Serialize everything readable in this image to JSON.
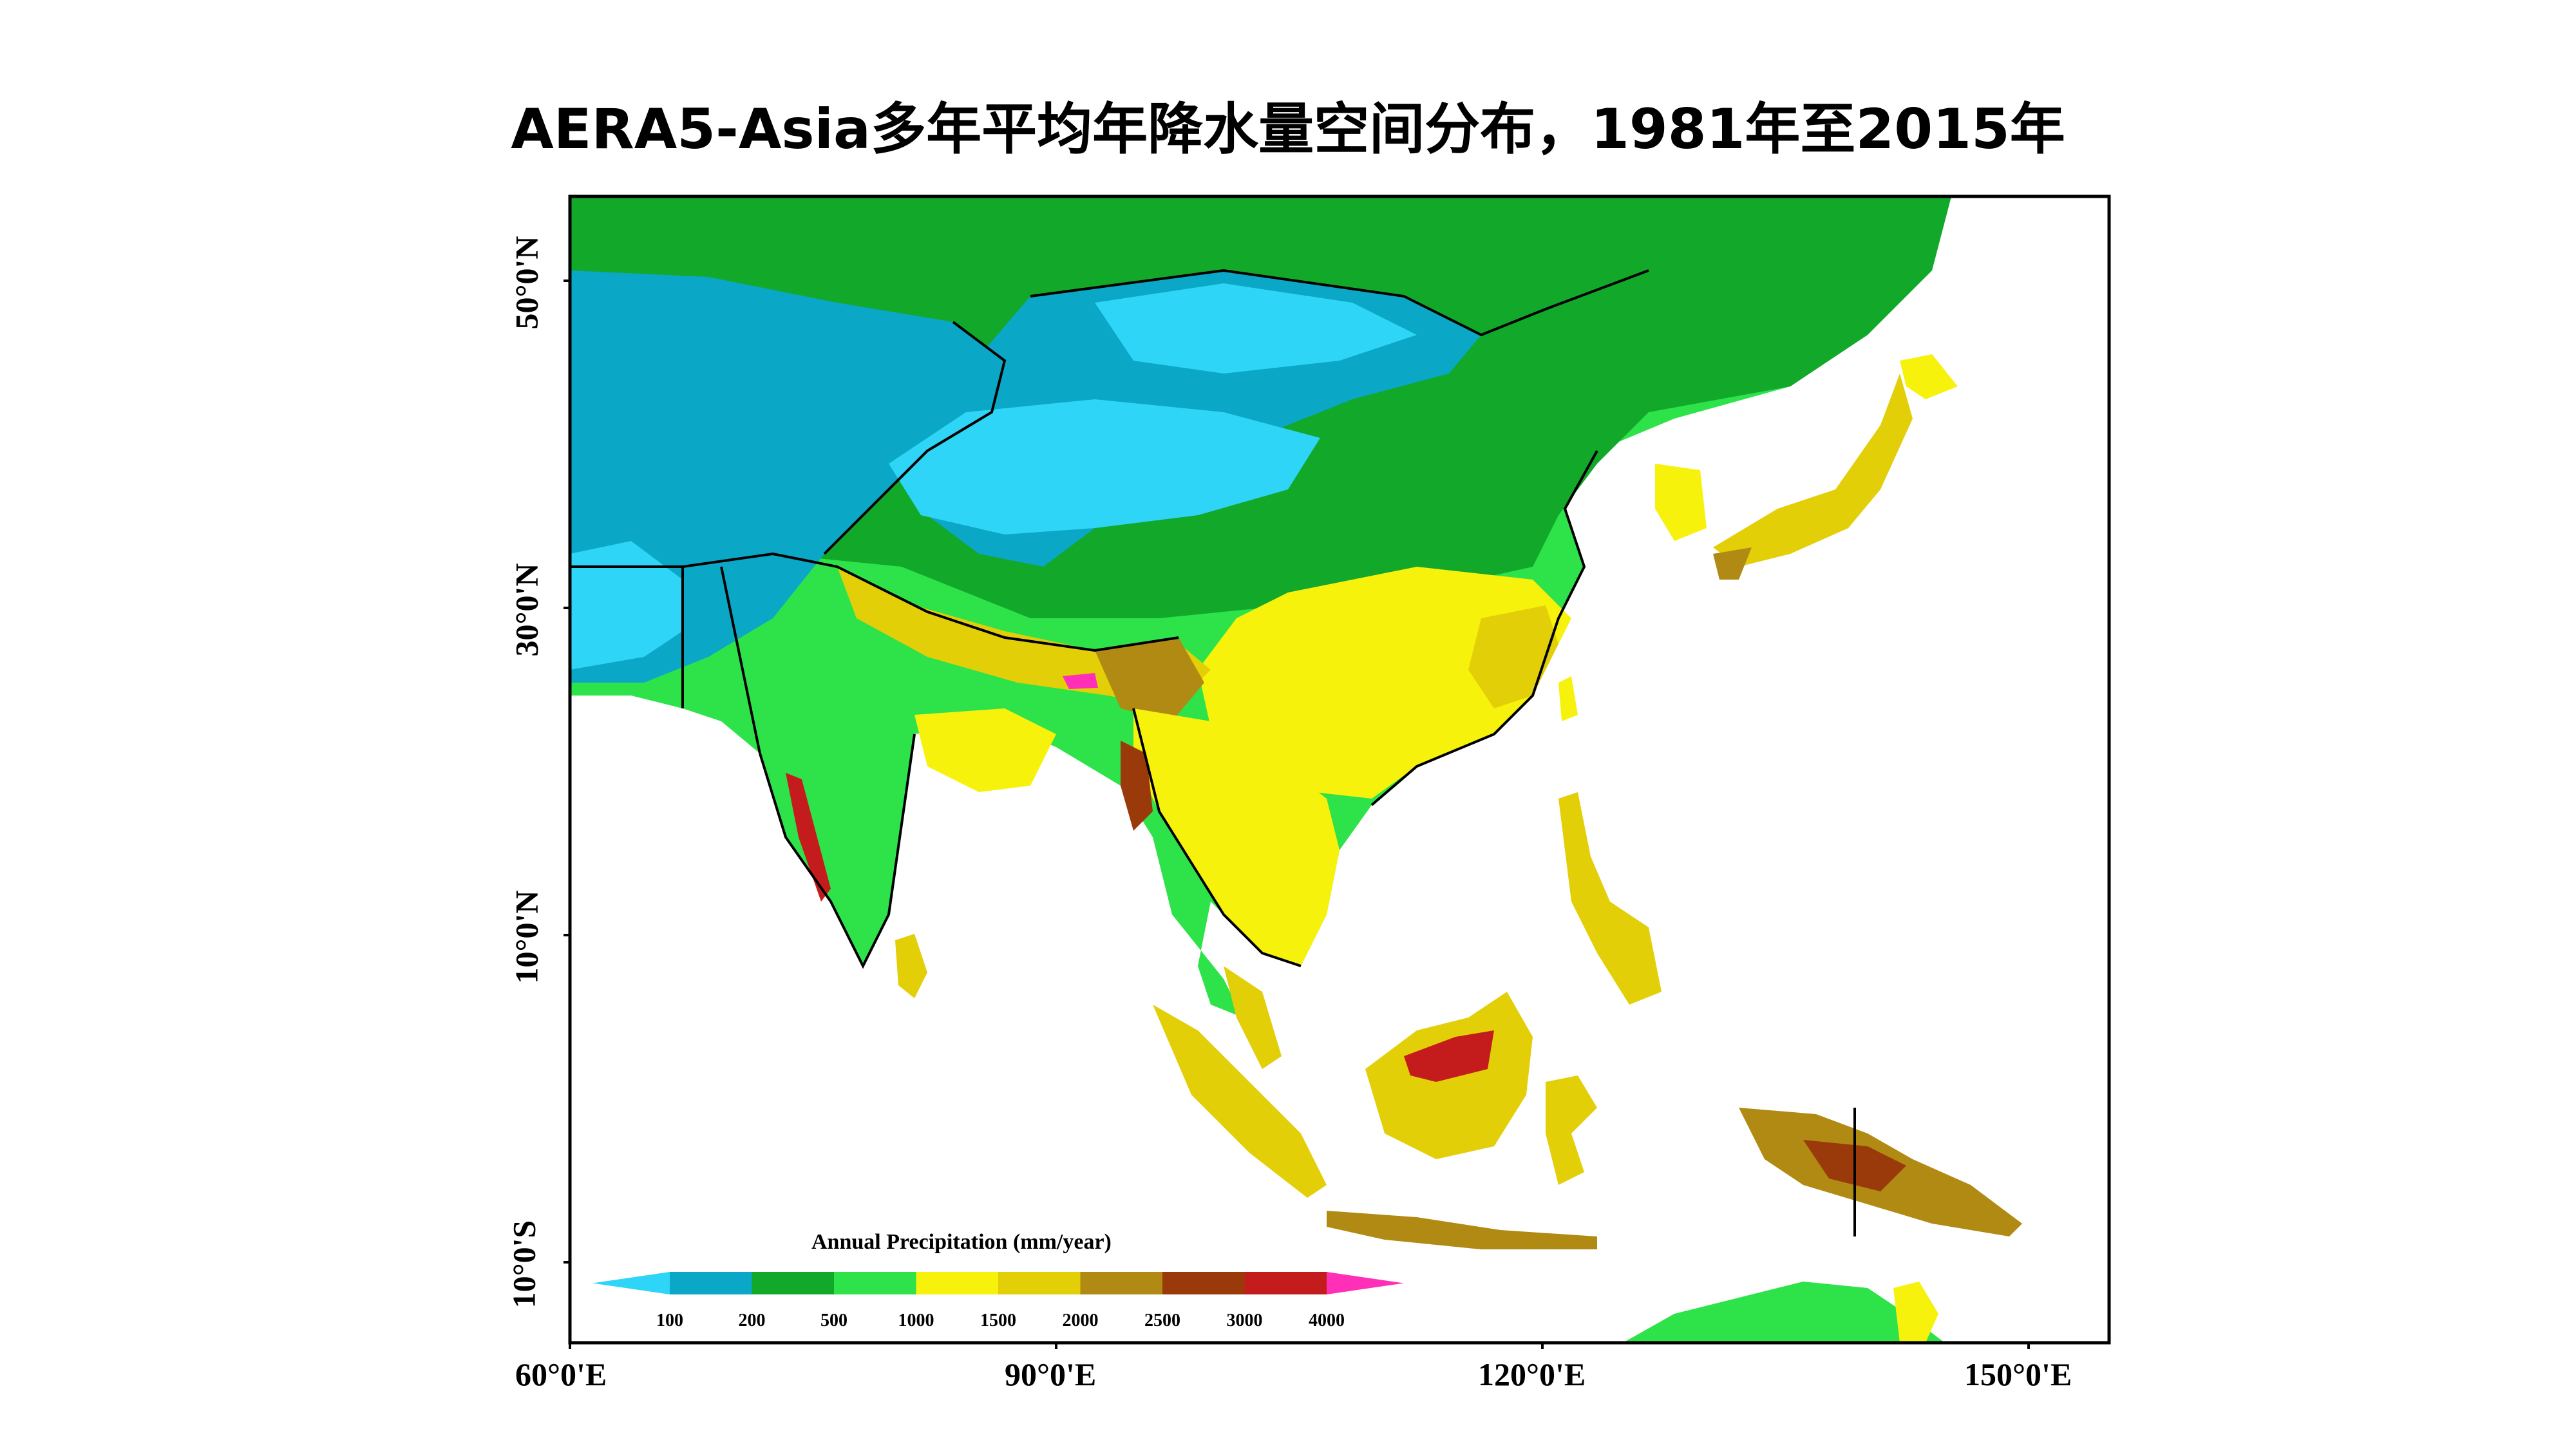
{
  "title": "AERA5-Asia多年平均年降水量空间分布，1981年至2015年",
  "axes": {
    "lat_ticks": [
      "50°0'N",
      "30°0'N",
      "10°0'N",
      "10°0'S"
    ],
    "lon_ticks": [
      "60°0'E",
      "90°0'E",
      "120°0'E",
      "150°0'E"
    ],
    "lat_range": [
      -15,
      55
    ],
    "lon_range": [
      60,
      155
    ]
  },
  "legend": {
    "title": "Annual Precipitation (mm/year)",
    "values": [
      "100",
      "200",
      "500",
      "1000",
      "1500",
      "2000",
      "2500",
      "3000",
      "4000"
    ],
    "colors": [
      "#2ed5f7",
      "#0aa7c6",
      "#12a82a",
      "#2ee24a",
      "#f7f20c",
      "#e2cf08",
      "#b08a12",
      "#9a3a0a",
      "#c41c1c",
      "#ff2fb8"
    ]
  },
  "colors": {
    "ocean": "#ffffff",
    "border": "#000000"
  }
}
